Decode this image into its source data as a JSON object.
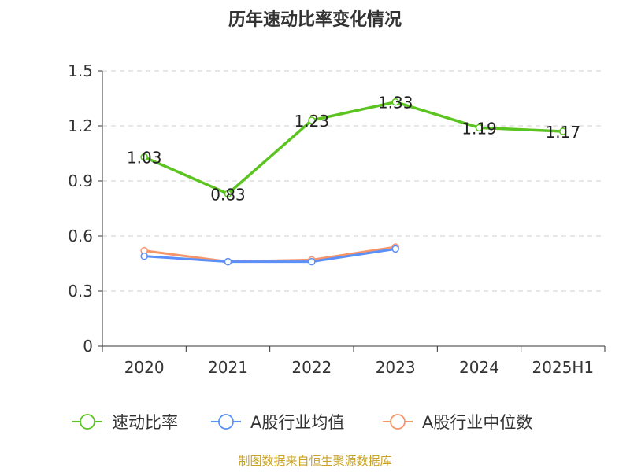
{
  "chart_data": {
    "type": "line",
    "title": "历年速动比率变化情况",
    "categories": [
      "2020",
      "2021",
      "2022",
      "2023",
      "2024",
      "2025H1"
    ],
    "ylim": [
      0,
      1.5
    ],
    "yticks": [
      "0",
      "0.3",
      "0.6",
      "0.9",
      "1.2",
      "1.5"
    ],
    "grid": true,
    "legend_position": "bottom",
    "series": [
      {
        "name": "速动比率",
        "color": "#5cc421",
        "values": [
          1.03,
          0.83,
          1.23,
          1.33,
          1.19,
          1.17
        ],
        "labels": [
          "1.03",
          "0.83",
          "1.23",
          "1.33",
          "1.19",
          "1.17"
        ]
      },
      {
        "name": "A股行业均值",
        "color": "#5b8ff9",
        "values": [
          0.49,
          0.46,
          0.46,
          0.53,
          null,
          null
        ]
      },
      {
        "name": "A股行业中位数",
        "color": "#f7956a",
        "values": [
          0.52,
          0.46,
          0.47,
          0.54,
          null,
          null
        ]
      }
    ],
    "source": "制图数据来自恒生聚源数据库"
  }
}
